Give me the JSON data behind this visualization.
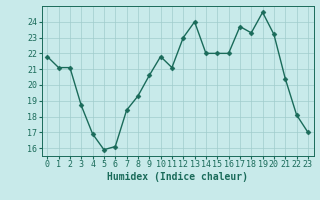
{
  "x": [
    0,
    1,
    2,
    3,
    4,
    5,
    6,
    7,
    8,
    9,
    10,
    11,
    12,
    13,
    14,
    15,
    16,
    17,
    18,
    19,
    20,
    21,
    22,
    23
  ],
  "y": [
    21.8,
    21.1,
    21.1,
    18.7,
    16.9,
    15.9,
    16.1,
    18.4,
    19.3,
    20.6,
    21.8,
    21.1,
    23.0,
    24.0,
    22.0,
    22.0,
    22.0,
    23.7,
    23.3,
    24.6,
    23.2,
    20.4,
    18.1,
    17.0
  ],
  "line_color": "#1a6b5a",
  "marker_color": "#1a6b5a",
  "bg_color": "#c8eaea",
  "grid_color": "#a0cccc",
  "xlabel": "Humidex (Indice chaleur)",
  "ylim": [
    15.5,
    25.0
  ],
  "xlim": [
    -0.5,
    23.5
  ],
  "yticks": [
    16,
    17,
    18,
    19,
    20,
    21,
    22,
    23,
    24
  ],
  "xticks": [
    0,
    1,
    2,
    3,
    4,
    5,
    6,
    7,
    8,
    9,
    10,
    11,
    12,
    13,
    14,
    15,
    16,
    17,
    18,
    19,
    20,
    21,
    22,
    23
  ],
  "xtick_labels": [
    "0",
    "1",
    "2",
    "3",
    "4",
    "5",
    "6",
    "7",
    "8",
    "9",
    "10",
    "11",
    "12",
    "13",
    "14",
    "15",
    "16",
    "17",
    "18",
    "19",
    "20",
    "21",
    "22",
    "23"
  ],
  "line_width": 1.0,
  "marker_size": 2.5,
  "tick_fontsize": 6.0,
  "xlabel_fontsize": 7.0,
  "font_family": "monospace"
}
